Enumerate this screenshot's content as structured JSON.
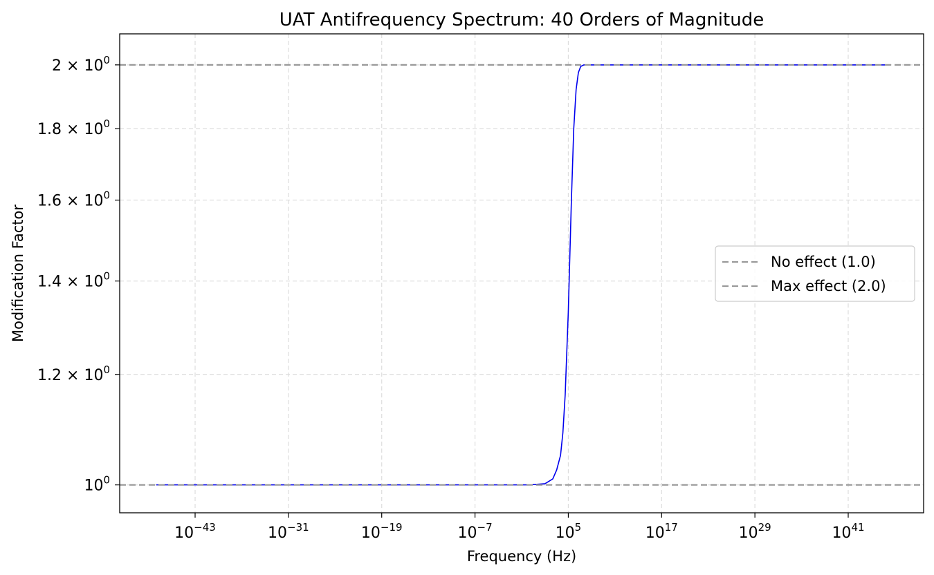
{
  "chart_data": {
    "type": "line",
    "title": "UAT Antifrequency Spectrum: 40 Orders of Magnitude",
    "xlabel": "Frequency (Hz)",
    "ylabel": "Modification Factor",
    "x_scale": "log",
    "y_scale": "log",
    "xlim_log10": [
      -52.7,
      50.7
    ],
    "ylim": [
      0.955,
      2.105
    ],
    "x_ticks": [
      {
        "exp": -43,
        "base": "10",
        "sup": "−43"
      },
      {
        "exp": -31,
        "base": "10",
        "sup": "−31"
      },
      {
        "exp": -19,
        "base": "10",
        "sup": "−19"
      },
      {
        "exp": -7,
        "base": "10",
        "sup": "−7"
      },
      {
        "exp": 5,
        "base": "10",
        "sup": "5"
      },
      {
        "exp": 17,
        "base": "10",
        "sup": "17"
      },
      {
        "exp": 29,
        "base": "10",
        "sup": "29"
      },
      {
        "exp": 41,
        "base": "10",
        "sup": "41"
      }
    ],
    "y_ticks": [
      {
        "value": 1.0,
        "prefix": "",
        "sup": "0"
      },
      {
        "value": 1.2,
        "prefix": "1.2 × ",
        "sup": "0"
      },
      {
        "value": 1.4,
        "prefix": "1.4 × ",
        "sup": "0"
      },
      {
        "value": 1.6,
        "prefix": "1.6 × ",
        "sup": "0"
      },
      {
        "value": 1.8,
        "prefix": "1.8 × ",
        "sup": "0"
      },
      {
        "value": 2.0,
        "prefix": "2 × ",
        "sup": "0"
      }
    ],
    "tick_base": "10",
    "grid": true,
    "legend_position": "center-right",
    "series": [
      {
        "name": "",
        "color": "#0000ee",
        "style": "solid",
        "x_log10": [
          -48,
          -20,
          0,
          2,
          3,
          3.5,
          4,
          4.3,
          4.6,
          5.0,
          5.4,
          5.7,
          6.0,
          6.3,
          6.6,
          7.0,
          8.0,
          46
        ],
        "y": [
          1.0,
          1.0,
          1.0,
          1.002,
          1.01,
          1.025,
          1.05,
          1.09,
          1.16,
          1.33,
          1.6,
          1.8,
          1.92,
          1.975,
          1.995,
          2.0,
          2.0,
          2.0
        ]
      },
      {
        "name": "No effect (1.0)",
        "color": "#999999",
        "style": "dashed",
        "y_constant": 1.0
      },
      {
        "name": "Max effect (2.0)",
        "color": "#999999",
        "style": "dashed",
        "y_constant": 2.0
      }
    ]
  }
}
